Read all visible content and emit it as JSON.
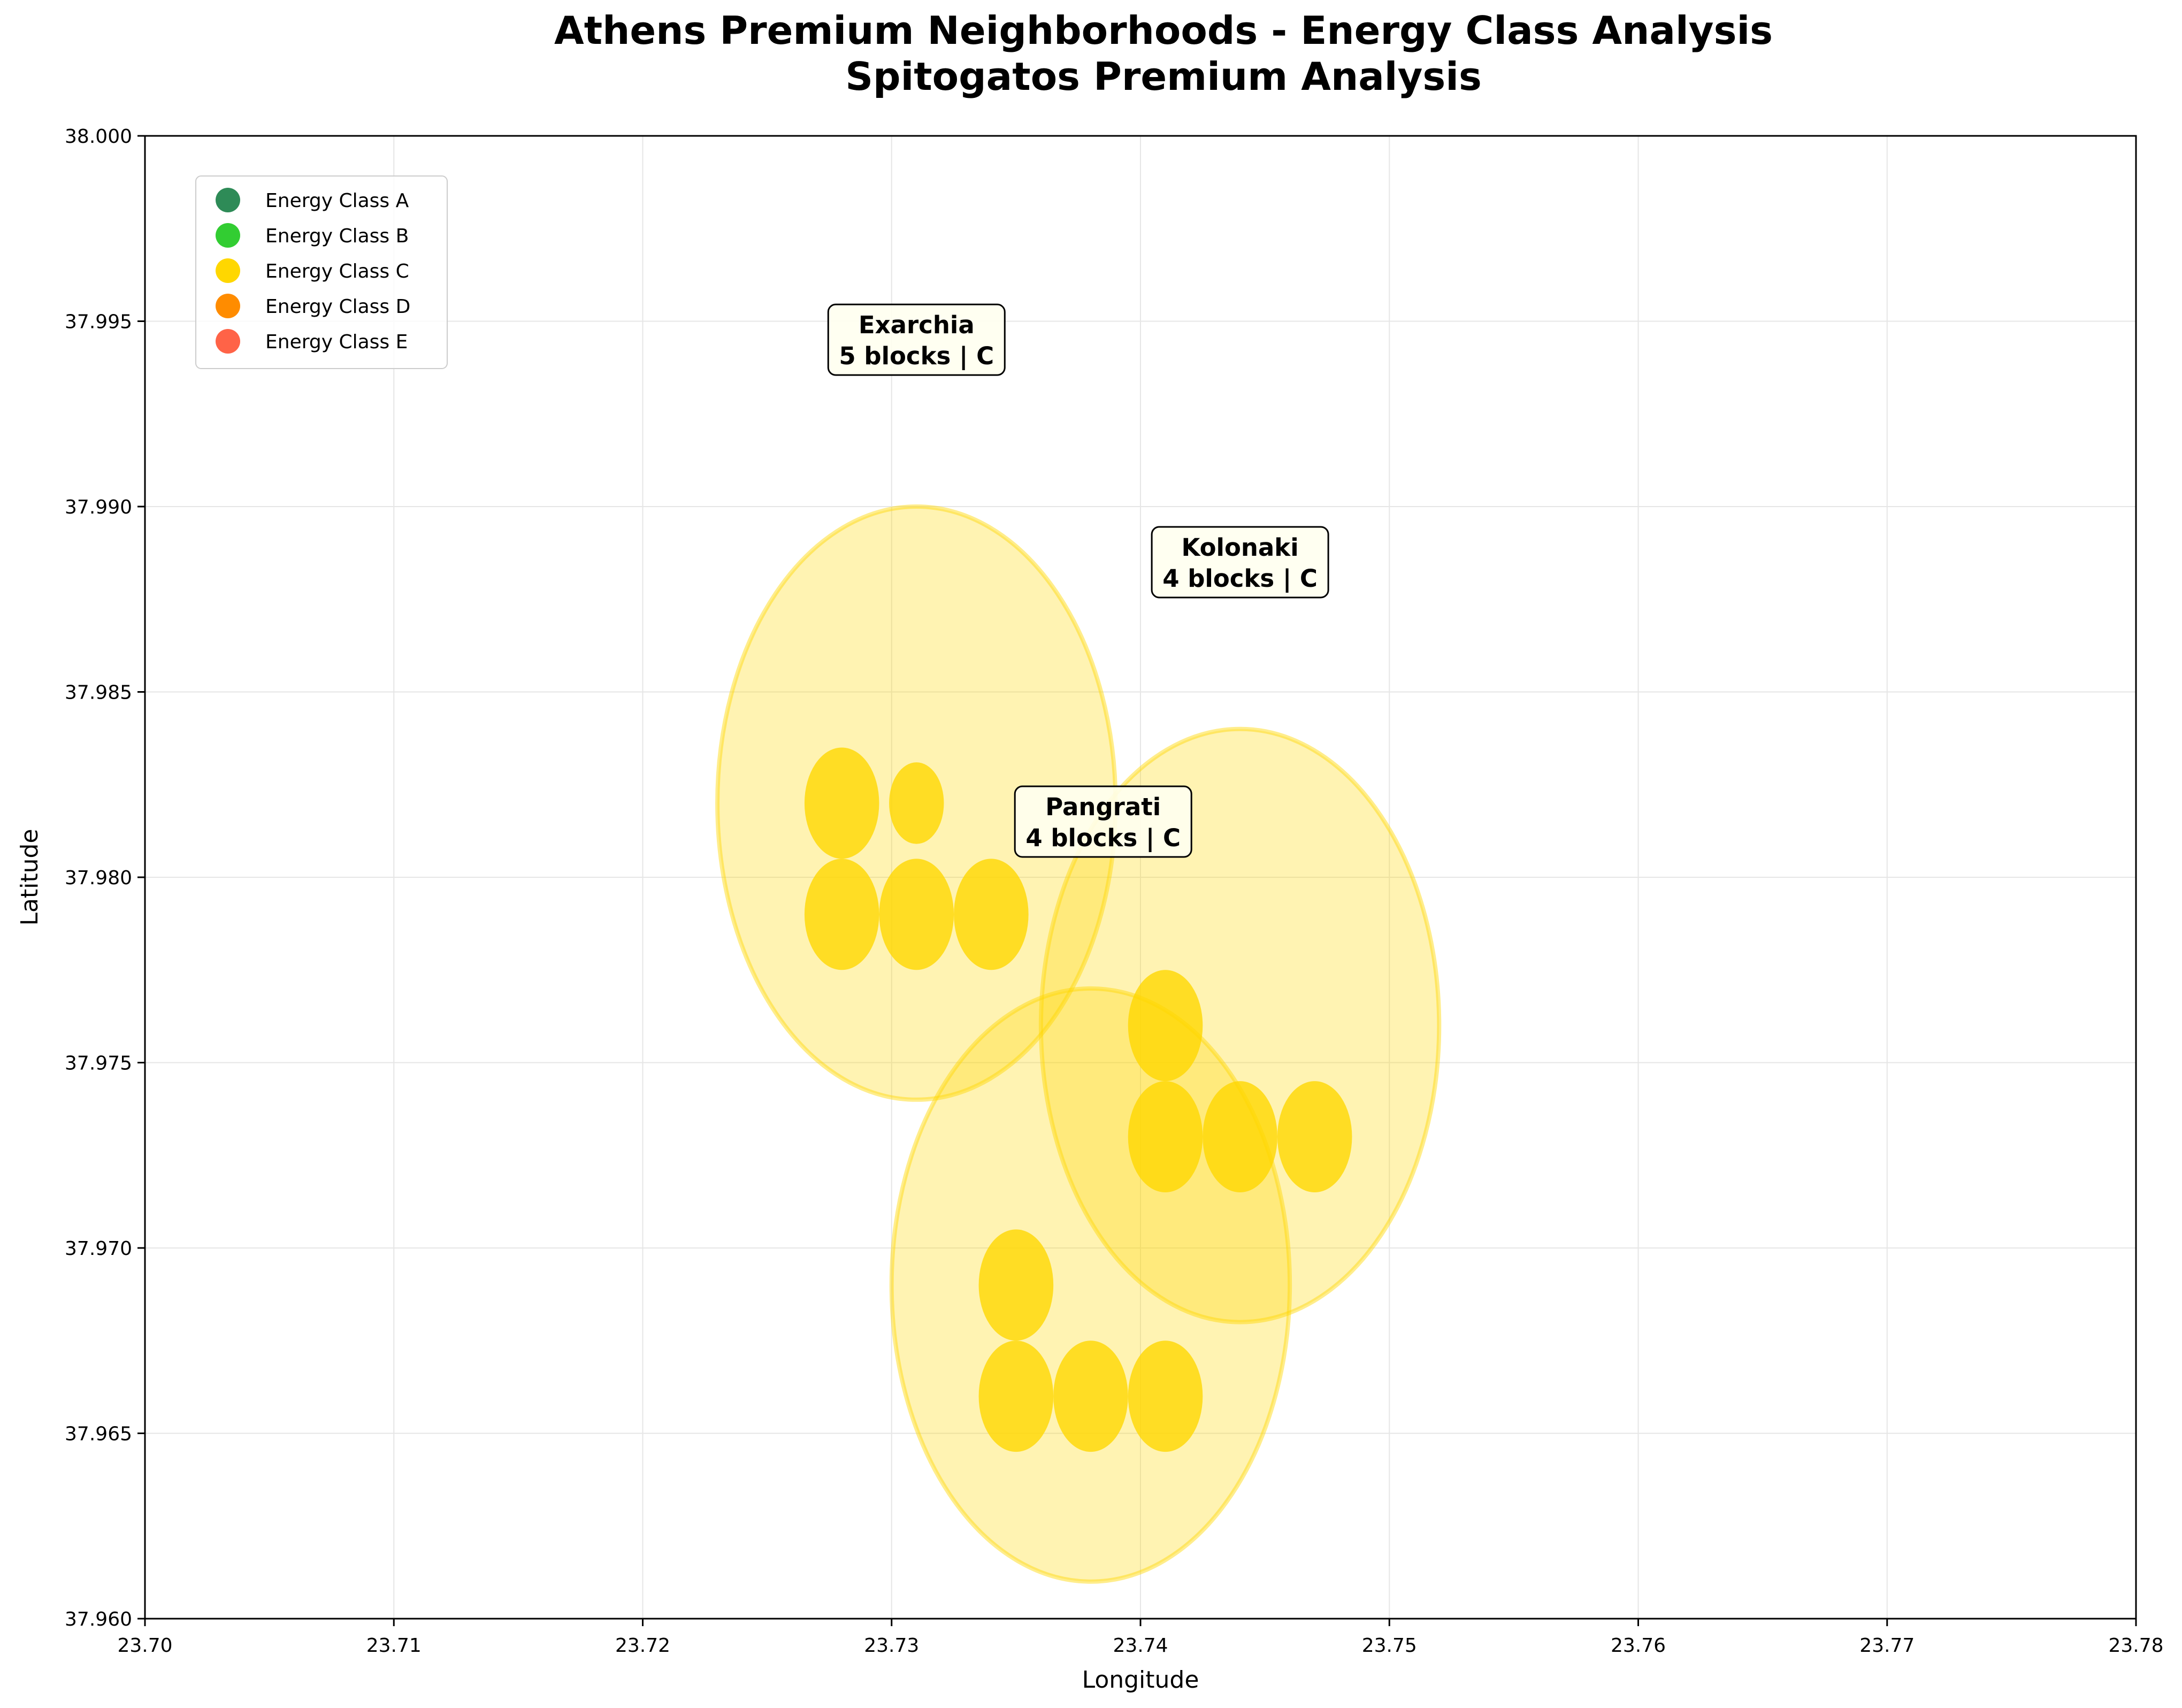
{
  "chart_data": {
    "type": "scatter",
    "title": "Athens Premium Neighborhoods - Energy Class Analysis",
    "subtitle": "Spitogatos Premium Analysis",
    "xlabel": "Longitude",
    "ylabel": "Latitude",
    "xlim": [
      23.7,
      23.78
    ],
    "ylim": [
      37.96,
      38.0
    ],
    "xticks": [
      "23.70",
      "23.71",
      "23.72",
      "23.73",
      "23.74",
      "23.75",
      "23.76",
      "23.77",
      "23.78"
    ],
    "yticks": [
      "37.960",
      "37.965",
      "37.970",
      "37.975",
      "37.980",
      "37.985",
      "37.990",
      "37.995",
      "38.000"
    ],
    "grid": true,
    "legend_position": "upper-left",
    "legend": [
      {
        "label": "Energy Class A",
        "color": "#2e8b57"
      },
      {
        "label": "Energy Class B",
        "color": "#32cd32"
      },
      {
        "label": "Energy Class C",
        "color": "#ffd700"
      },
      {
        "label": "Energy Class D",
        "color": "#ff8c00"
      },
      {
        "label": "Energy Class E",
        "color": "#ff6347"
      }
    ],
    "neighborhoods": [
      {
        "name": "Exarchia",
        "label_line1": "Exarchia",
        "label_line2": "5 blocks | C",
        "energy_class": "C",
        "center": [
          23.731,
          37.982
        ],
        "radius": [
          0.008,
          0.008
        ],
        "label_at": [
          23.731,
          37.9945
        ],
        "blocks": [
          {
            "x": 23.728,
            "y": 37.982,
            "size": "large"
          },
          {
            "x": 23.731,
            "y": 37.982,
            "size": "small"
          },
          {
            "x": 23.728,
            "y": 37.979,
            "size": "large"
          },
          {
            "x": 23.731,
            "y": 37.979,
            "size": "large"
          },
          {
            "x": 23.734,
            "y": 37.979,
            "size": "large"
          }
        ]
      },
      {
        "name": "Kolonaki",
        "label_line1": "Kolonaki",
        "label_line2": "4 blocks | C",
        "energy_class": "C",
        "center": [
          23.744,
          37.976
        ],
        "radius": [
          0.008,
          0.008
        ],
        "label_at": [
          23.744,
          37.9885
        ],
        "blocks": [
          {
            "x": 23.741,
            "y": 37.976,
            "size": "large"
          },
          {
            "x": 23.741,
            "y": 37.973,
            "size": "large"
          },
          {
            "x": 23.744,
            "y": 37.973,
            "size": "large"
          },
          {
            "x": 23.747,
            "y": 37.973,
            "size": "large"
          }
        ]
      },
      {
        "name": "Pangrati",
        "label_line1": "Pangrati",
        "label_line2": "4 blocks | C",
        "energy_class": "C",
        "center": [
          23.738,
          37.969
        ],
        "radius": [
          0.008,
          0.008
        ],
        "label_at": [
          23.7385,
          37.9815
        ],
        "blocks": [
          {
            "x": 23.735,
            "y": 37.969,
            "size": "large"
          },
          {
            "x": 23.735,
            "y": 37.966,
            "size": "large"
          },
          {
            "x": 23.738,
            "y": 37.966,
            "size": "large"
          },
          {
            "x": 23.741,
            "y": 37.966,
            "size": "large"
          }
        ]
      }
    ],
    "colors": {
      "class_c_fill": "#ffd700",
      "class_c_edge": "#ffd700",
      "grid": "#e6e6e6",
      "annotation_bg": "#fffff0"
    }
  }
}
